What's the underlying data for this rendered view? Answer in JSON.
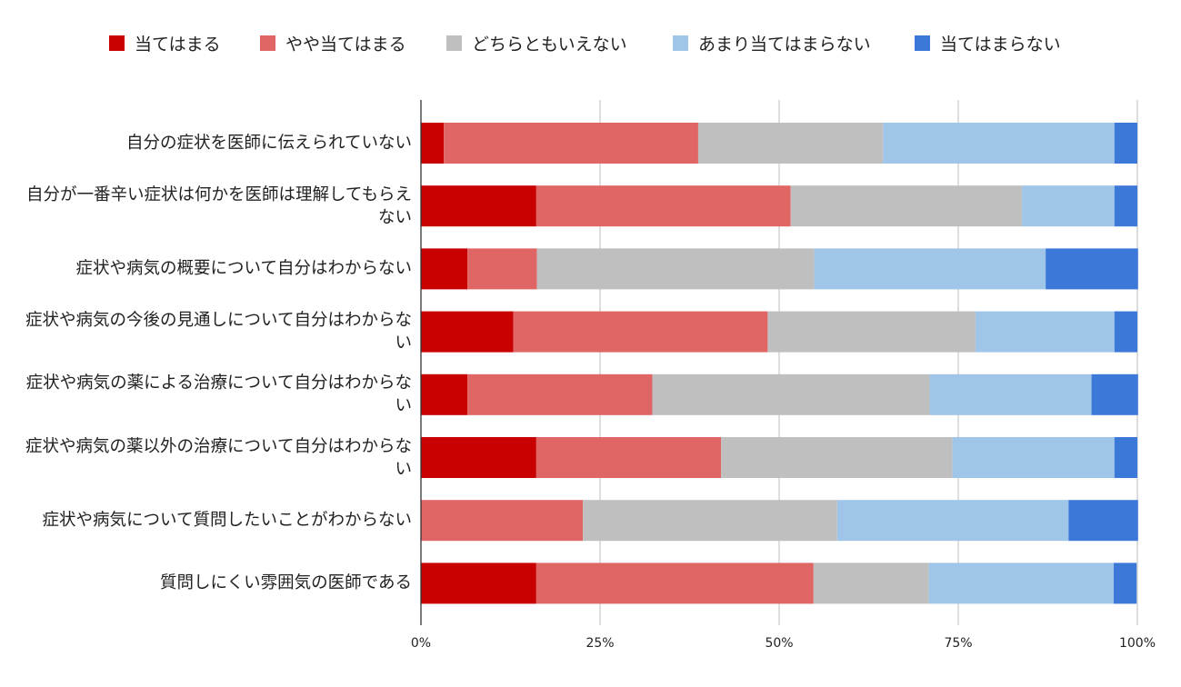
{
  "chart_data": {
    "type": "bar",
    "orientation": "horizontal",
    "stacked": true,
    "title": "",
    "xlabel": "",
    "ylabel": "",
    "xlim": [
      0,
      100
    ],
    "grid": true,
    "legend_position": "top",
    "x_ticks": [
      "0%",
      "25%",
      "50%",
      "75%",
      "100%"
    ],
    "categories": [
      "自分の症状を医師に伝えられていない",
      "自分が一番辛い症状は何かを医師は理解してもらえない",
      "症状や病気の概要について自分はわからない",
      "症状や病気の今後の見通しについて自分はわからない",
      "症状や病気の薬による治療について自分はわからない",
      "症状や病気の薬以外の治療について自分はわからない",
      "症状や病気について質問したいことがわからない",
      "質問しにくい雰囲気の医師である"
    ],
    "series": [
      {
        "name": "当てはまる",
        "color": "#c80000",
        "values": [
          3.2,
          16.1,
          6.5,
          12.9,
          6.5,
          16.1,
          0,
          16.1
        ]
      },
      {
        "name": "やや当てはまる",
        "color": "#e06666",
        "values": [
          35.5,
          35.5,
          9.7,
          35.5,
          25.8,
          25.8,
          22.6,
          38.7
        ]
      },
      {
        "name": "どちらともいえない",
        "color": "#bfbfbf",
        "values": [
          25.8,
          32.3,
          38.7,
          29.0,
          38.7,
          32.3,
          35.5,
          16.1
        ]
      },
      {
        "name": "あまり当てはまらない",
        "color": "#9fc5e8",
        "values": [
          32.3,
          12.9,
          32.3,
          19.4,
          22.6,
          22.6,
          32.3,
          25.8
        ]
      },
      {
        "name": "当てはまらない",
        "color": "#3c78d8",
        "values": [
          3.2,
          3.2,
          12.9,
          3.2,
          6.5,
          3.2,
          9.7,
          3.2
        ]
      }
    ]
  }
}
